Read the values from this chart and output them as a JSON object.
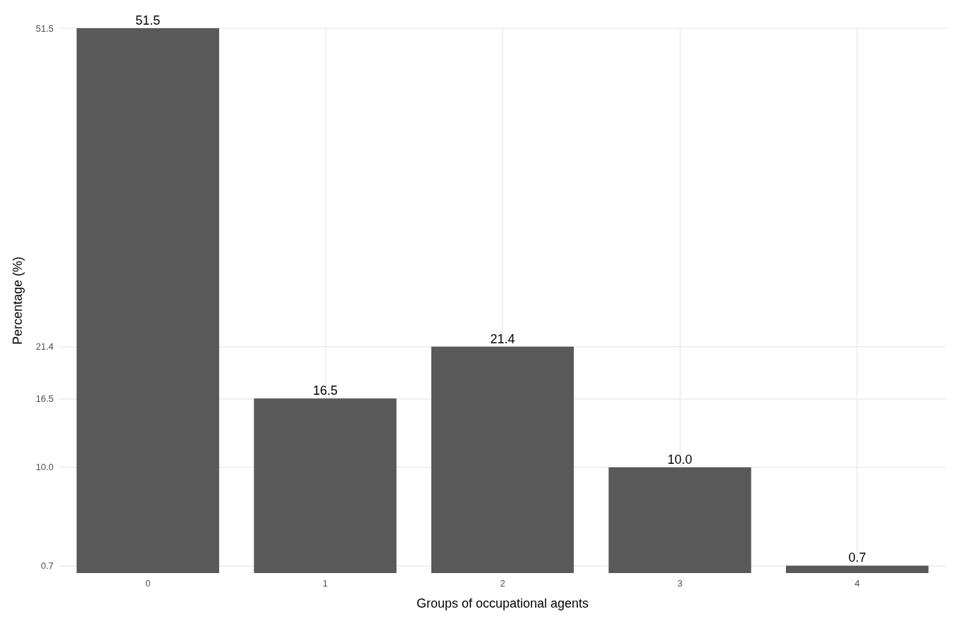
{
  "chart_data": {
    "type": "bar",
    "xlabel": "Groups of occupational agents",
    "ylabel": "Percentage (%)",
    "categories": [
      "0",
      "1",
      "2",
      "3",
      "4"
    ],
    "values": [
      51.5,
      16.5,
      21.4,
      10.0,
      0.7
    ],
    "value_labels": [
      "51.5",
      "16.5",
      "21.4",
      "10.0",
      "0.7"
    ],
    "color": "#595959",
    "ylim": [
      0,
      51.5
    ],
    "yticks": [
      0.7,
      {
        "value": 10,
        "label": "10.0"
      },
      16.5,
      21.4,
      51.5
    ],
    "grid": true
  }
}
